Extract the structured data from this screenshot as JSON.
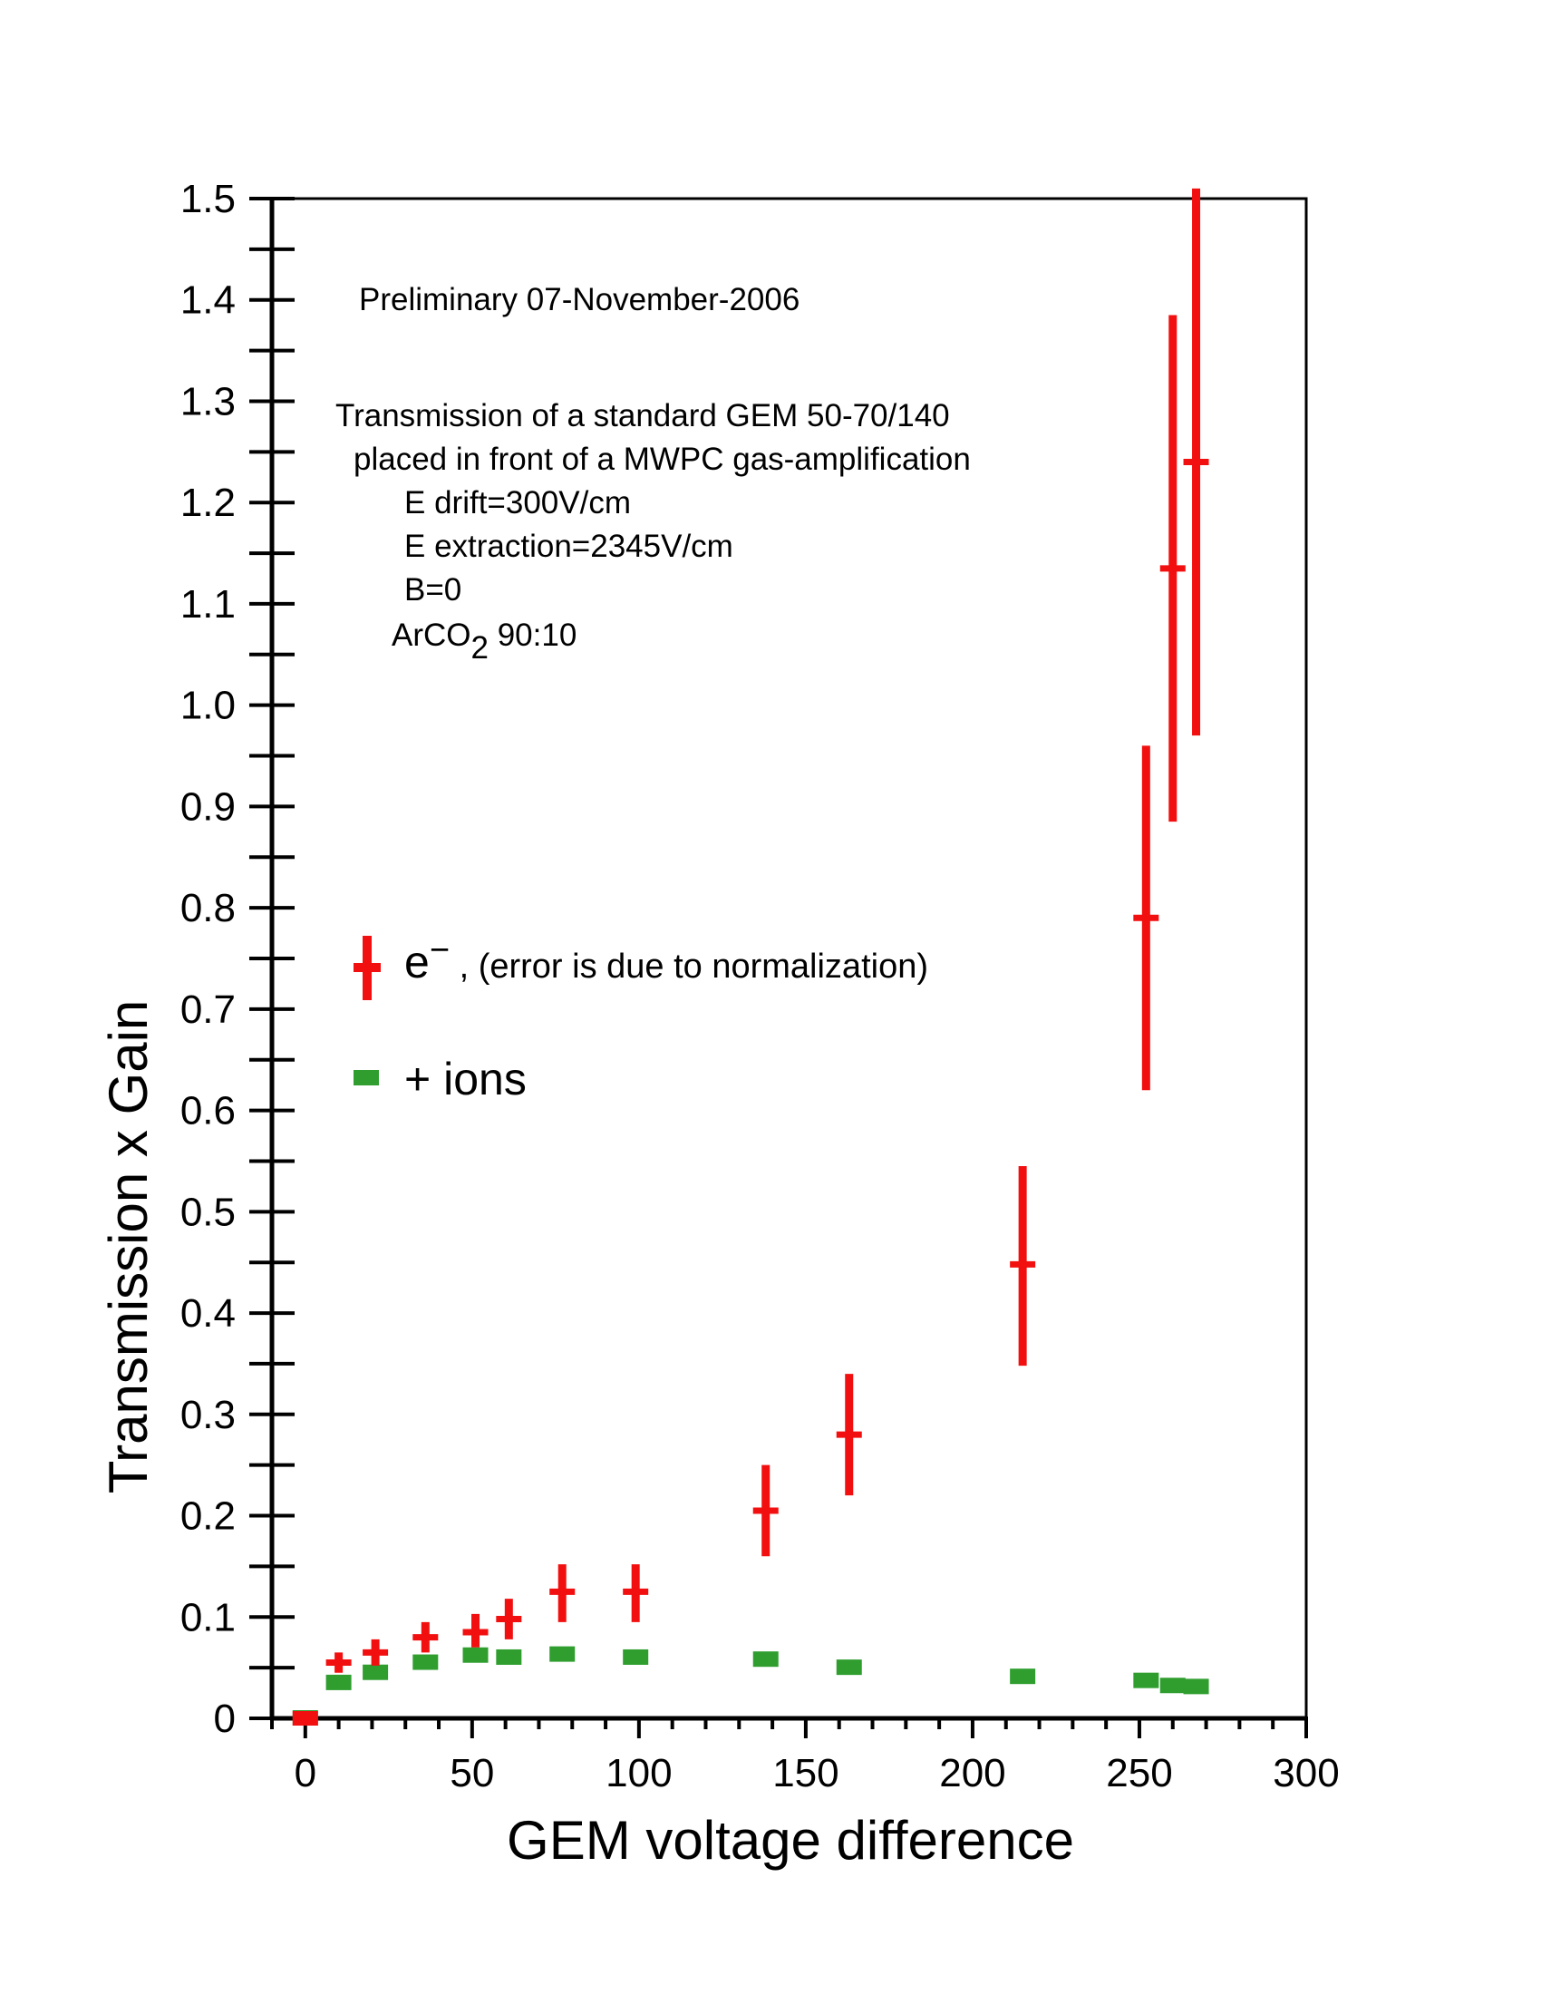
{
  "chart_data": {
    "type": "scatter",
    "xlabel": "GEM voltage difference",
    "ylabel": "Transmission  x  Gain",
    "xlim": [
      -10,
      300
    ],
    "ylim": [
      0,
      1.5
    ],
    "x_ticks": [
      "0",
      "50",
      "100",
      "150",
      "200",
      "250",
      "300"
    ],
    "x_tick_values": [
      0,
      50,
      100,
      150,
      200,
      250,
      300
    ],
    "y_ticks": [
      "0",
      "0.1",
      "0.2",
      "0.3",
      "0.4",
      "0.5",
      "0.6",
      "0.7",
      "0.8",
      "0.9",
      "1.0",
      "1.1",
      "1.2",
      "1.3",
      "1.4",
      "1.5"
    ],
    "y_tick_values": [
      0,
      0.1,
      0.2,
      0.3,
      0.4,
      0.5,
      0.6,
      0.7,
      0.8,
      0.9,
      1.0,
      1.1,
      1.2,
      1.3,
      1.4,
      1.5
    ],
    "annotations": {
      "preliminary": "Preliminary    07-November-2006",
      "line1": "Transmission of a standard GEM  50-70/140",
      "line2": "placed in front of a MWPC gas-amplification",
      "line3": "E drift=300V/cm",
      "line4": "E extraction=2345V/cm",
      "line5": "B=0",
      "gas_main": "ArCO",
      "gas_sub": "2",
      "gas_ratio": " 90:10"
    },
    "legend": {
      "electrons_symbol": "e",
      "electrons_sup": "−",
      "electrons_text": " ,  (error is due to normalization)",
      "ions_text": "+ ions"
    },
    "colors": {
      "electrons": "#f20f0f",
      "ions": "#2f9e2f"
    },
    "series": [
      {
        "name": "e-",
        "x": [
          0,
          10,
          21,
          36,
          51,
          61,
          77,
          99,
          138,
          163,
          215,
          252,
          260,
          267
        ],
        "y": [
          0.0,
          0.055,
          0.065,
          0.08,
          0.085,
          0.098,
          0.125,
          0.125,
          0.205,
          0.28,
          0.448,
          0.79,
          1.135,
          1.24
        ],
        "err_low": [
          0.0,
          0.01,
          0.013,
          0.015,
          0.015,
          0.02,
          0.03,
          0.03,
          0.045,
          0.06,
          0.1,
          0.17,
          0.25,
          0.27
        ],
        "err_high": [
          0.0,
          0.01,
          0.013,
          0.015,
          0.018,
          0.02,
          0.027,
          0.027,
          0.045,
          0.06,
          0.097,
          0.17,
          0.25,
          0.27
        ]
      },
      {
        "name": "+ ions",
        "x": [
          0,
          10,
          21,
          36,
          51,
          61,
          77,
          99,
          138,
          163,
          215,
          252,
          260,
          267
        ],
        "y": [
          0.0,
          0.035,
          0.045,
          0.055,
          0.062,
          0.06,
          0.063,
          0.06,
          0.058,
          0.05,
          0.041,
          0.037,
          0.032,
          0.031
        ]
      }
    ]
  }
}
